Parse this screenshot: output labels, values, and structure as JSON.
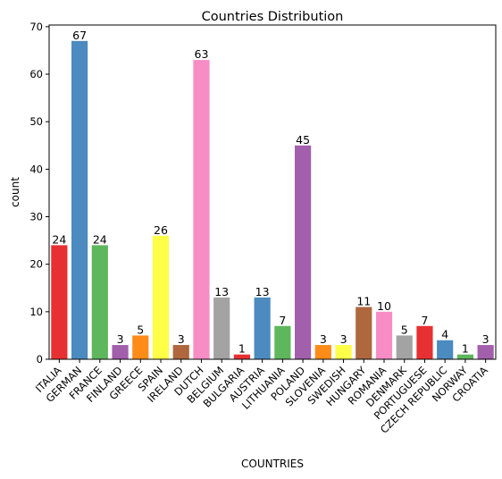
{
  "chart_data": {
    "type": "bar",
    "title": "Countries Distribution",
    "xlabel": "COUNTRIES",
    "ylabel": "count",
    "ylim": [
      0,
      70.35
    ],
    "yticks": [
      0,
      10,
      20,
      30,
      40,
      50,
      60,
      70
    ],
    "categories": [
      "ITALIA",
      "GERMAN",
      "FRANCE",
      "FINLAND",
      "GREECE",
      "SPAIN",
      "IRELAND",
      "DUTCH",
      "BELGIUM",
      "BULGARIA",
      "AUSTRIA",
      "LITHUANIA",
      "POLAND",
      "SLOVENIA",
      "SWEDISH",
      "HUNGARY",
      "ROMANIA",
      "DENMARK",
      "PORTUGUESE",
      "CZECH REPUBLIC",
      "NORWAY",
      "CROATIA"
    ],
    "values": [
      24,
      67,
      24,
      3,
      5,
      26,
      3,
      63,
      13,
      1,
      13,
      7,
      45,
      3,
      3,
      11,
      10,
      5,
      7,
      4,
      1,
      3
    ],
    "colors": [
      "#e41a1c",
      "#377eb8",
      "#4daf4a",
      "#984ea3",
      "#ff7f00",
      "#ffff33",
      "#a65628",
      "#f781bf",
      "#999999",
      "#e41a1c",
      "#377eb8",
      "#4daf4a",
      "#984ea3",
      "#ff7f00",
      "#ffff33",
      "#a65628",
      "#f781bf",
      "#999999",
      "#e41a1c",
      "#377eb8",
      "#4daf4a",
      "#984ea3"
    ],
    "bar_opacity": 0.9
  }
}
